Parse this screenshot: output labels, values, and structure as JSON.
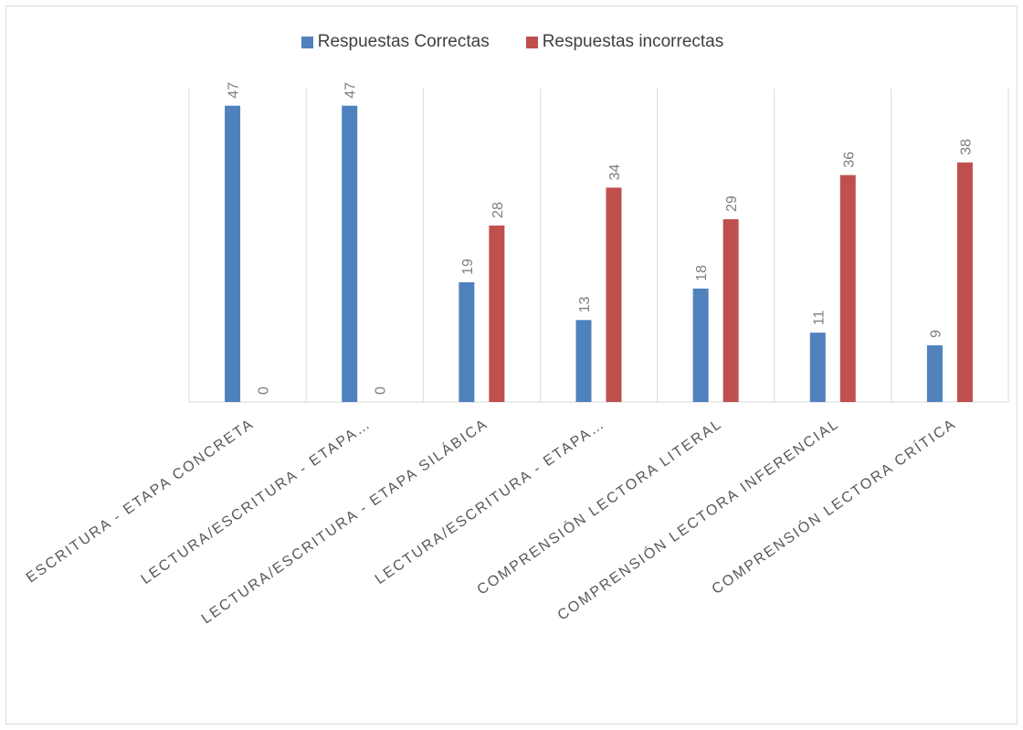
{
  "chart_data": {
    "type": "bar",
    "categories": [
      "ESCRITURA - ETAPA CONCRETA",
      "LECTURA/ESCRITURA - ETAPA…",
      "LECTURA/ESCRITURA - ETAPA SILÁBICA",
      "LECTURA/ESCRITURA - ETAPA…",
      "COMPRENSIÓN LECTORA LITERAL",
      "COMPRENSIÓN LECTORA INFERENCIAL",
      "COMPRENSIÓN LECTORA CRÍTICA"
    ],
    "series": [
      {
        "name": "Respuestas Correctas",
        "color": "#4f81bd",
        "values": [
          47,
          47,
          19,
          13,
          18,
          11,
          9
        ]
      },
      {
        "name": "Respuestas incorrectas",
        "color": "#c0504d",
        "values": [
          0,
          0,
          28,
          34,
          29,
          36,
          38
        ]
      }
    ],
    "ylim": [
      0,
      50
    ],
    "grid": "vertical",
    "legend_position": "top"
  }
}
